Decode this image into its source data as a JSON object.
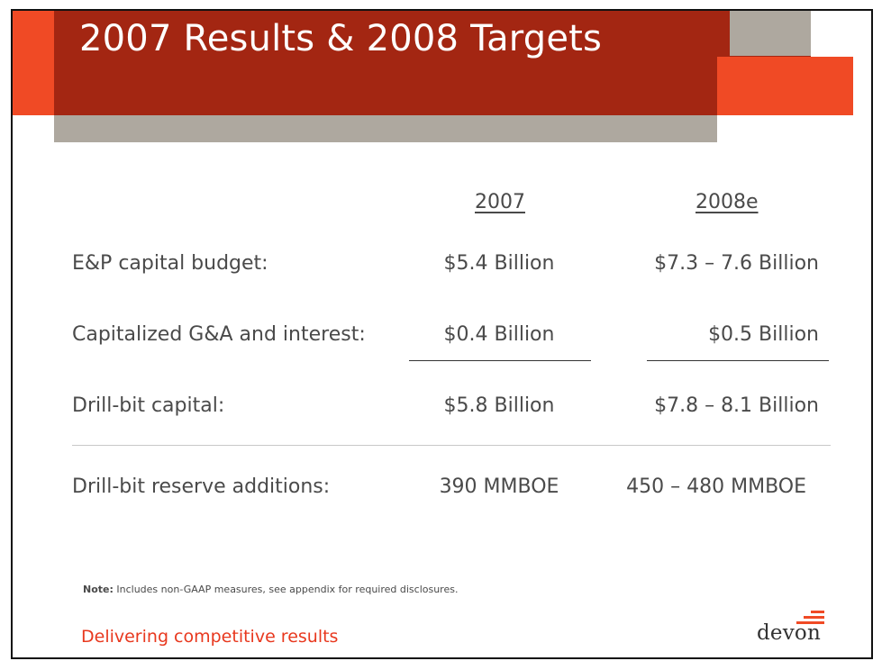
{
  "slide": {
    "title": "2007 Results & 2008 Targets",
    "columns": [
      "2007",
      "2008e"
    ],
    "rows": [
      {
        "label": "E&P capital budget:",
        "v2007": "$5.4 Billion",
        "v2008": "$7.3 – 7.6 Billion"
      },
      {
        "label": "Capitalized G&A and interest:",
        "v2007": "$0.4 Billion",
        "v2008": "$0.5 Billion"
      },
      {
        "label": "Drill-bit capital:",
        "v2007": "$5.8 Billion",
        "v2008": "$7.8 – 8.1 Billion"
      },
      {
        "label": "Drill-bit reserve additions:",
        "v2007": "390 MMBOE",
        "v2008": "450 – 480 MMBOE"
      }
    ],
    "note_label": "Note:",
    "note_text": " Includes non-GAAP measures, see appendix for required disclosures.",
    "tagline": "Delivering competitive results",
    "logo_text": "devon"
  },
  "colors": {
    "dark_red": "#a32612",
    "orange_red": "#f04a25",
    "gray": "#aea89f",
    "text": "#4a4a4a",
    "tagline": "#e8381e"
  }
}
